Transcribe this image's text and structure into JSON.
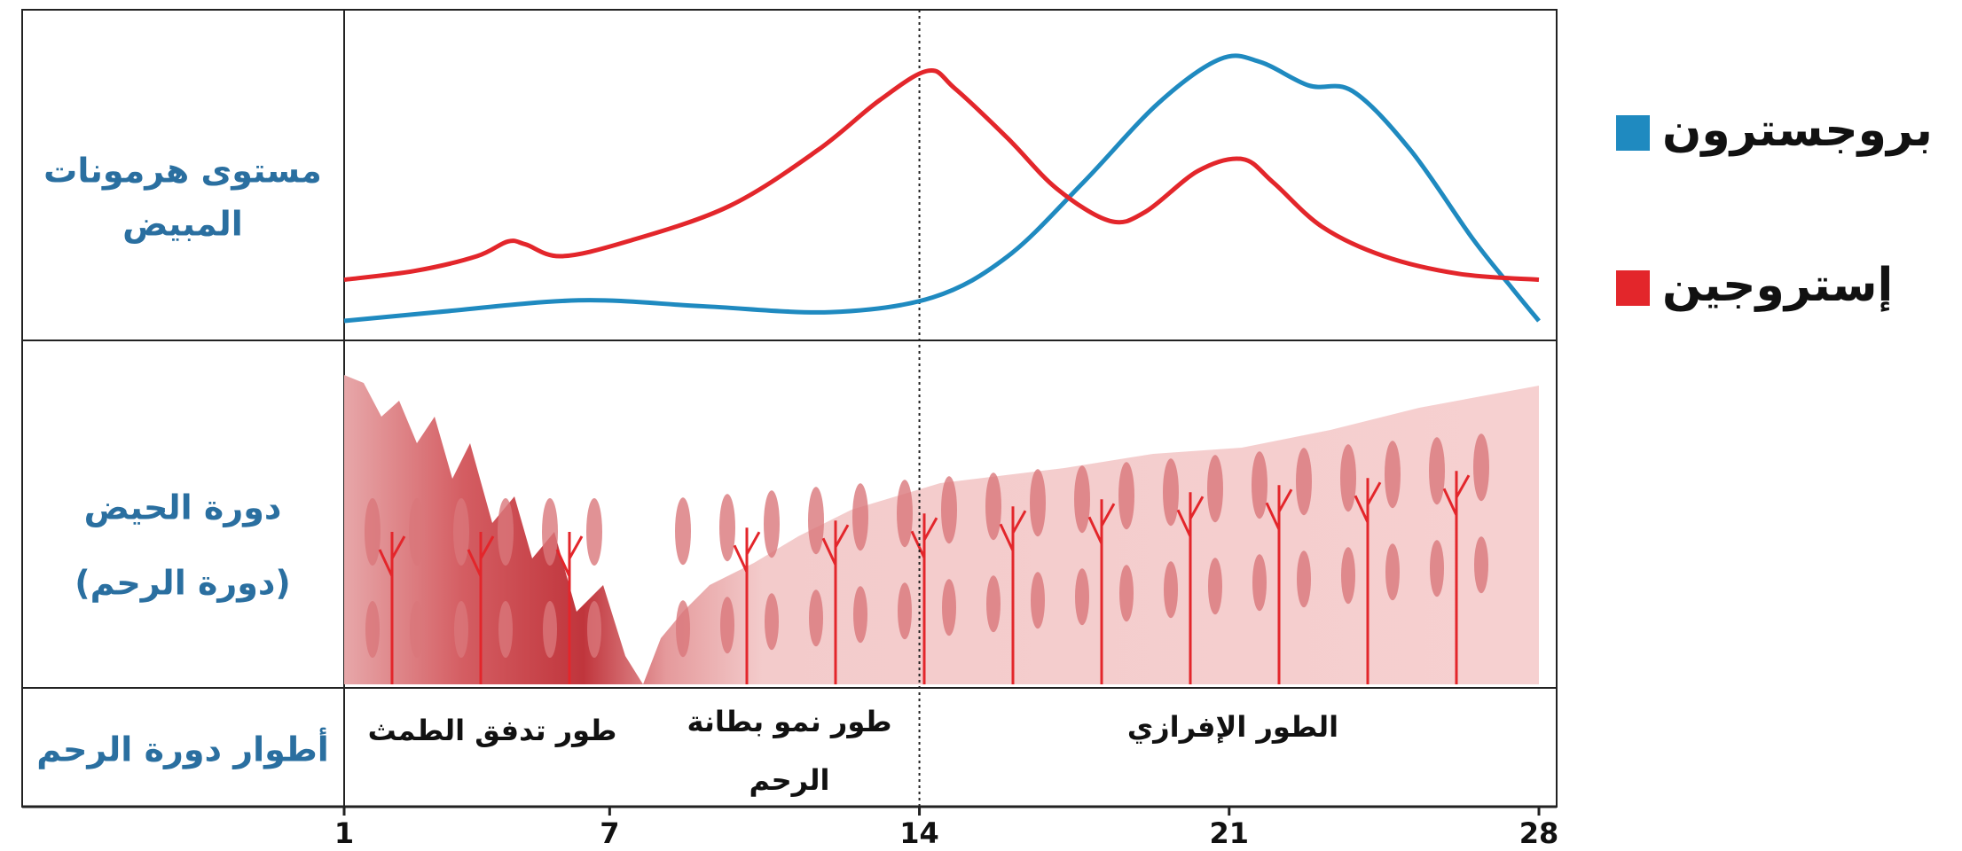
{
  "chart_data": {
    "type": "line",
    "row_labels": [
      [
        "مستوى هرمونات",
        "المبيض"
      ],
      [
        "دورة الحيض",
        "(دورة الرحم)"
      ],
      [
        "أطوار دورة الرحم"
      ]
    ],
    "phase_labels": [
      [
        "طور تدفق الطمث"
      ],
      [
        "طور نمو بطانة",
        "الرحم"
      ],
      [
        "الطور الإفرازي"
      ]
    ],
    "xlim": [
      1,
      28
    ],
    "xticks": [
      1,
      7,
      14,
      21,
      28
    ],
    "ylim": [
      0,
      100
    ],
    "divider_x": 14,
    "series": [
      {
        "name": "بروجسترون",
        "color": "#1f8ac0",
        "x": [
          1,
          3.1,
          6.3,
          9.1,
          12,
          14.3,
          16,
          17.7,
          19.4,
          20.8,
          21.7,
          22.8,
          23.8,
          25.1,
          26.5,
          27.4,
          28
        ],
        "values": [
          3,
          6,
          10,
          8,
          6,
          11,
          25,
          50,
          77,
          92,
          91,
          83,
          81,
          61,
          31,
          14,
          3
        ]
      },
      {
        "name": "إستروجين",
        "color": "#e3262b",
        "x": [
          1,
          2.6,
          4,
          4.7,
          5.1,
          5.9,
          7.4,
          9.7,
          11.7,
          13.1,
          14.2,
          14.8,
          16,
          17.1,
          18.3,
          19.1,
          20.3,
          21.3,
          22,
          23.1,
          24.5,
          26.2,
          28
        ],
        "values": [
          17,
          20,
          25,
          30,
          29,
          25,
          30,
          42,
          61,
          78,
          88,
          82,
          65,
          48,
          37,
          40,
          54,
          58,
          50,
          35,
          25,
          19,
          17
        ]
      }
    ]
  }
}
